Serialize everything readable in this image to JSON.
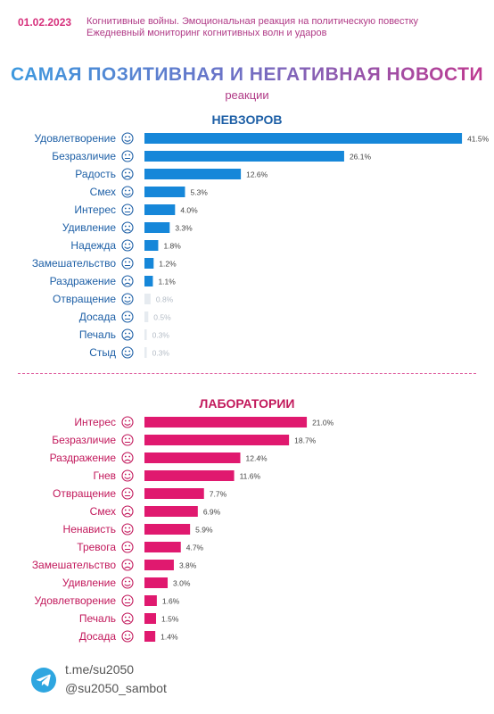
{
  "header": {
    "date": "01.02.2023",
    "line1": "Когнитивные войны. Эмоциональная реакция на политическую повестку",
    "line2": "Ежедневный мониторинг когнитивных волн и ударов"
  },
  "title": "САМАЯ ПОЗИТИВНАЯ И НЕГАТИВНАЯ НОВОСТИ",
  "subtitle": "реакции",
  "colors": {
    "blue_bar": "#1687d9",
    "blue_faint": "#e6ebf0",
    "pink_bar": "#e0196f",
    "blue_text": "#1d5fa6",
    "pink_text": "#c2185b"
  },
  "chart_data": [
    {
      "type": "bar",
      "orientation": "horizontal",
      "title": "НЕВЗОРОВ",
      "categories": [
        "Удовлетворение",
        "Безразличие",
        "Радость",
        "Смех",
        "Интерес",
        "Удивление",
        "Надежда",
        "Замешательство",
        "Раздражение",
        "Отвращение",
        "Досада",
        "Печаль",
        "Стыд"
      ],
      "icons": [
        "satisfied-icon",
        "indifferent-icon",
        "joy-icon",
        "laughter-icon",
        "interest-icon",
        "surprise-icon",
        "hope-icon",
        "confusion-icon",
        "irritation-icon",
        "disgust-icon",
        "annoyance-icon",
        "sadness-icon",
        "shame-icon"
      ],
      "values": [
        41.5,
        26.1,
        12.6,
        5.3,
        4.0,
        3.3,
        1.8,
        1.2,
        1.1,
        0.8,
        0.5,
        0.3,
        0.3
      ],
      "labels": [
        "41.5%",
        "26.1%",
        "12.6%",
        "5.3%",
        "4.0%",
        "3.3%",
        "1.8%",
        "1.2%",
        "1.1%",
        "0.8%",
        "0.5%",
        "0.3%",
        "0.3%"
      ],
      "color": "#1687d9",
      "text_color": "#1d5fa6"
    },
    {
      "type": "bar",
      "orientation": "horizontal",
      "title": "ЛАБОРАТОРИИ",
      "categories": [
        "Интерес",
        "Безразличие",
        "Раздражение",
        "Гнев",
        "Отвращение",
        "Смех",
        "Ненависть",
        "Тревога",
        "Замешательство",
        "Удивление",
        "Удовлетворение",
        "Печаль",
        "Досада"
      ],
      "icons": [
        "interest-icon",
        "indifferent-icon",
        "irritation-icon",
        "anger-icon",
        "disgust-icon",
        "laughter-icon",
        "hatred-icon",
        "anxiety-icon",
        "confusion-icon",
        "surprise-icon",
        "satisfied-icon",
        "sadness-icon",
        "annoyance-icon"
      ],
      "values": [
        21.0,
        18.7,
        12.4,
        11.6,
        7.7,
        6.9,
        5.9,
        4.7,
        3.8,
        3.0,
        1.6,
        1.5,
        1.4
      ],
      "labels": [
        "21.0%",
        "18.7%",
        "12.4%",
        "11.6%",
        "7.7%",
        "6.9%",
        "5.9%",
        "4.7%",
        "3.8%",
        "3.0%",
        "1.6%",
        "1.5%",
        "1.4%"
      ],
      "color": "#e0196f",
      "text_color": "#c2185b"
    }
  ],
  "footer": {
    "link": "t.me/su2050",
    "bot": "@su2050_sambot",
    "icon": "telegram-icon"
  }
}
